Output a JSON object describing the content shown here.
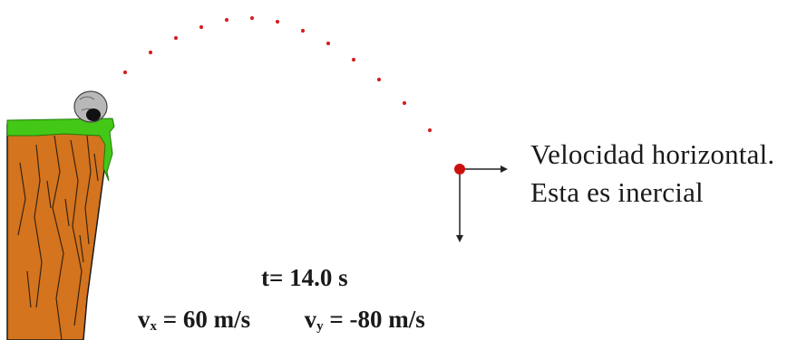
{
  "annotation": {
    "line1": "Velocidad horizontal.",
    "line2": "Esta es inercial"
  },
  "readout": {
    "time_label": "t=",
    "time_value": "14.0 s",
    "vx_symbol": "v",
    "vx_subscript": "x",
    "vx_value": "=  60 m/s",
    "vy_symbol": "v",
    "vy_subscript": "y",
    "vy_value": "= -80 m/s"
  },
  "colors": {
    "trajectory": "#d42020",
    "projectile": "#cc1010",
    "cliff_earth": "#d4741e",
    "cliff_grass": "#44c818",
    "vector_arrows": "#222222",
    "rock": "#b8b8b8"
  }
}
